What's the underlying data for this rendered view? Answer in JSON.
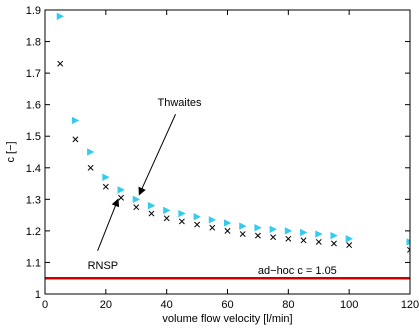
{
  "chart_data": {
    "type": "scatter",
    "xlabel": "volume flow velocity [l/min]",
    "ylabel": "c [−]",
    "xlim": [
      0,
      120
    ],
    "ylim": [
      1.0,
      1.9
    ],
    "x_ticks": [
      "0",
      "20",
      "40",
      "60",
      "80",
      "100",
      "120"
    ],
    "y_ticks": [
      "1",
      "1.1",
      "1.2",
      "1.3",
      "1.4",
      "1.5",
      "1.6",
      "1.7",
      "1.8",
      "1.9"
    ],
    "grid": false,
    "series": [
      {
        "marker": "triangle-right",
        "color": "#33CCEE",
        "x": [
          5,
          10,
          15,
          20,
          25,
          30,
          35,
          40,
          45,
          50,
          55,
          60,
          65,
          70,
          75,
          80,
          85,
          90,
          95,
          100,
          120
        ],
        "y": [
          1.88,
          1.55,
          1.45,
          1.37,
          1.33,
          1.3,
          1.28,
          1.265,
          1.255,
          1.245,
          1.235,
          1.225,
          1.215,
          1.21,
          1.205,
          1.2,
          1.195,
          1.19,
          1.185,
          1.175,
          1.165
        ]
      },
      {
        "marker": "x",
        "color": "#000000",
        "x": [
          5,
          10,
          15,
          20,
          25,
          30,
          35,
          40,
          45,
          50,
          55,
          60,
          65,
          70,
          75,
          80,
          85,
          90,
          95,
          100,
          120
        ],
        "y": [
          1.73,
          1.49,
          1.4,
          1.34,
          1.305,
          1.275,
          1.255,
          1.24,
          1.23,
          1.22,
          1.21,
          1.2,
          1.19,
          1.185,
          1.18,
          1.175,
          1.17,
          1.165,
          1.16,
          1.155,
          1.14
        ]
      }
    ],
    "hline": {
      "y": 1.05,
      "color": "#CC0000",
      "label": "ad−hoc c = 1.05"
    },
    "annotations": [
      {
        "text": "Thwaites",
        "text_x": 37,
        "text_y": 1.595,
        "arrow_to_x": 31,
        "arrow_to_y": 1.315
      },
      {
        "text": "RNSP",
        "text_x": 14,
        "text_y": 1.08,
        "arrow_to_x": 24,
        "arrow_to_y": 1.3
      }
    ]
  }
}
